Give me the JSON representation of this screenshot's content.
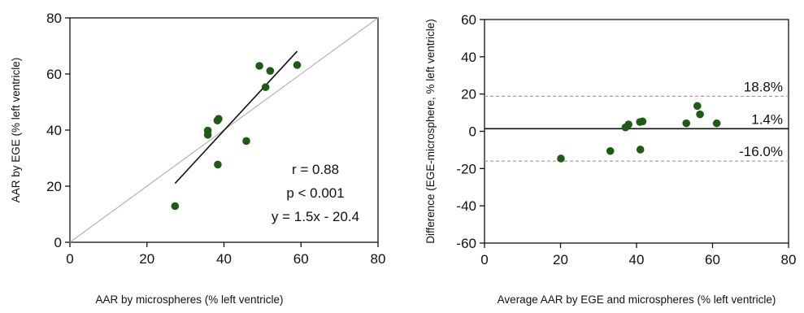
{
  "chart_data": [
    {
      "type": "scatter",
      "xlabel": "AAR by microspheres (% left ventricle)",
      "ylabel": "AAR by EGE (% left ventricle)",
      "xlim": [
        0,
        80
      ],
      "ylim": [
        0,
        80
      ],
      "xticks": [
        0,
        20,
        40,
        60,
        80
      ],
      "yticks": [
        0,
        20,
        40,
        60,
        80
      ],
      "grid": false,
      "colors": {
        "points": "#1e5c16",
        "identity_line": "#b4b4b4",
        "fit_line": "#111111"
      },
      "series": [
        {
          "points": [
            {
              "x": 27.3,
              "y": 12.9
            },
            {
              "x": 35.8,
              "y": 38.3
            },
            {
              "x": 35.8,
              "y": 39.8
            },
            {
              "x": 38.3,
              "y": 43.4
            },
            {
              "x": 38.6,
              "y": 44.0
            },
            {
              "x": 38.4,
              "y": 27.7
            },
            {
              "x": 45.8,
              "y": 36.1
            },
            {
              "x": 49.2,
              "y": 62.9
            },
            {
              "x": 50.8,
              "y": 55.3
            },
            {
              "x": 52.0,
              "y": 61.1
            },
            {
              "x": 59.0,
              "y": 63.2
            }
          ]
        }
      ],
      "identity_line": {
        "from": [
          0,
          0
        ],
        "to": [
          80,
          80
        ]
      },
      "fit_line": {
        "from": [
          27.3,
          21.0
        ],
        "to": [
          59.0,
          68.1
        ]
      },
      "annotations": [
        "r = 0.88",
        "p < 0.001",
        "y = 1.5x - 20.4"
      ]
    },
    {
      "type": "scatter",
      "xlabel": "Average AAR by EGE and microspheres (% left ventricle)",
      "ylabel": "Difference (EGE-microsphere, % left ventricle)",
      "xlim": [
        0,
        80
      ],
      "ylim": [
        -60,
        60
      ],
      "xticks": [
        0,
        20,
        40,
        60,
        80
      ],
      "yticks": [
        -60,
        -40,
        -20,
        0,
        20,
        40,
        60
      ],
      "grid": false,
      "colors": {
        "points": "#1e5c16",
        "mean_line": "#111111",
        "limit_lines": "#9a9a9a"
      },
      "series": [
        {
          "points": [
            {
              "x": 20.1,
              "y": -14.6
            },
            {
              "x": 33.1,
              "y": -10.6
            },
            {
              "x": 37.1,
              "y": 2.1
            },
            {
              "x": 37.9,
              "y": 3.7
            },
            {
              "x": 41.0,
              "y": -9.8
            },
            {
              "x": 40.9,
              "y": 5.0
            },
            {
              "x": 41.6,
              "y": 5.3
            },
            {
              "x": 53.1,
              "y": 4.3
            },
            {
              "x": 56.0,
              "y": 13.6
            },
            {
              "x": 56.7,
              "y": 9.1
            },
            {
              "x": 61.1,
              "y": 4.3
            }
          ]
        }
      ],
      "reference_lines": [
        {
          "value": 18.8,
          "label": "18.8%",
          "style": "dashed"
        },
        {
          "value": 1.4,
          "label": "1.4%",
          "style": "solid"
        },
        {
          "value": -16.0,
          "label": "-16.0%",
          "style": "dashed"
        }
      ]
    }
  ]
}
